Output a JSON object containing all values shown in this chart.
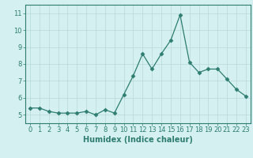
{
  "x": [
    0,
    1,
    2,
    3,
    4,
    5,
    6,
    7,
    8,
    9,
    10,
    11,
    12,
    13,
    14,
    15,
    16,
    17,
    18,
    19,
    20,
    21,
    22,
    23
  ],
  "y": [
    5.4,
    5.4,
    5.2,
    5.1,
    5.1,
    5.1,
    5.2,
    5.0,
    5.3,
    5.1,
    6.2,
    7.3,
    8.6,
    7.7,
    8.6,
    9.4,
    10.9,
    8.1,
    7.5,
    7.7,
    7.7,
    7.1,
    6.5,
    6.1
  ],
  "line_color": "#2e7d70",
  "marker": "D",
  "marker_size": 2.5,
  "background_color": "#d4f0f0",
  "grid_color": "#b8d8d8",
  "xlabel": "Humidex (Indice chaleur)",
  "ylim": [
    4.5,
    11.5
  ],
  "xlim": [
    -0.5,
    23.5
  ],
  "yticks": [
    5,
    6,
    7,
    8,
    9,
    10,
    11
  ],
  "xticks": [
    0,
    1,
    2,
    3,
    4,
    5,
    6,
    7,
    8,
    9,
    10,
    11,
    12,
    13,
    14,
    15,
    16,
    17,
    18,
    19,
    20,
    21,
    22,
    23
  ],
  "tick_color": "#2e7d70",
  "label_color": "#2e7d70",
  "spine_color": "#2e7d70",
  "font_size": 6,
  "xlabel_fontsize": 7
}
